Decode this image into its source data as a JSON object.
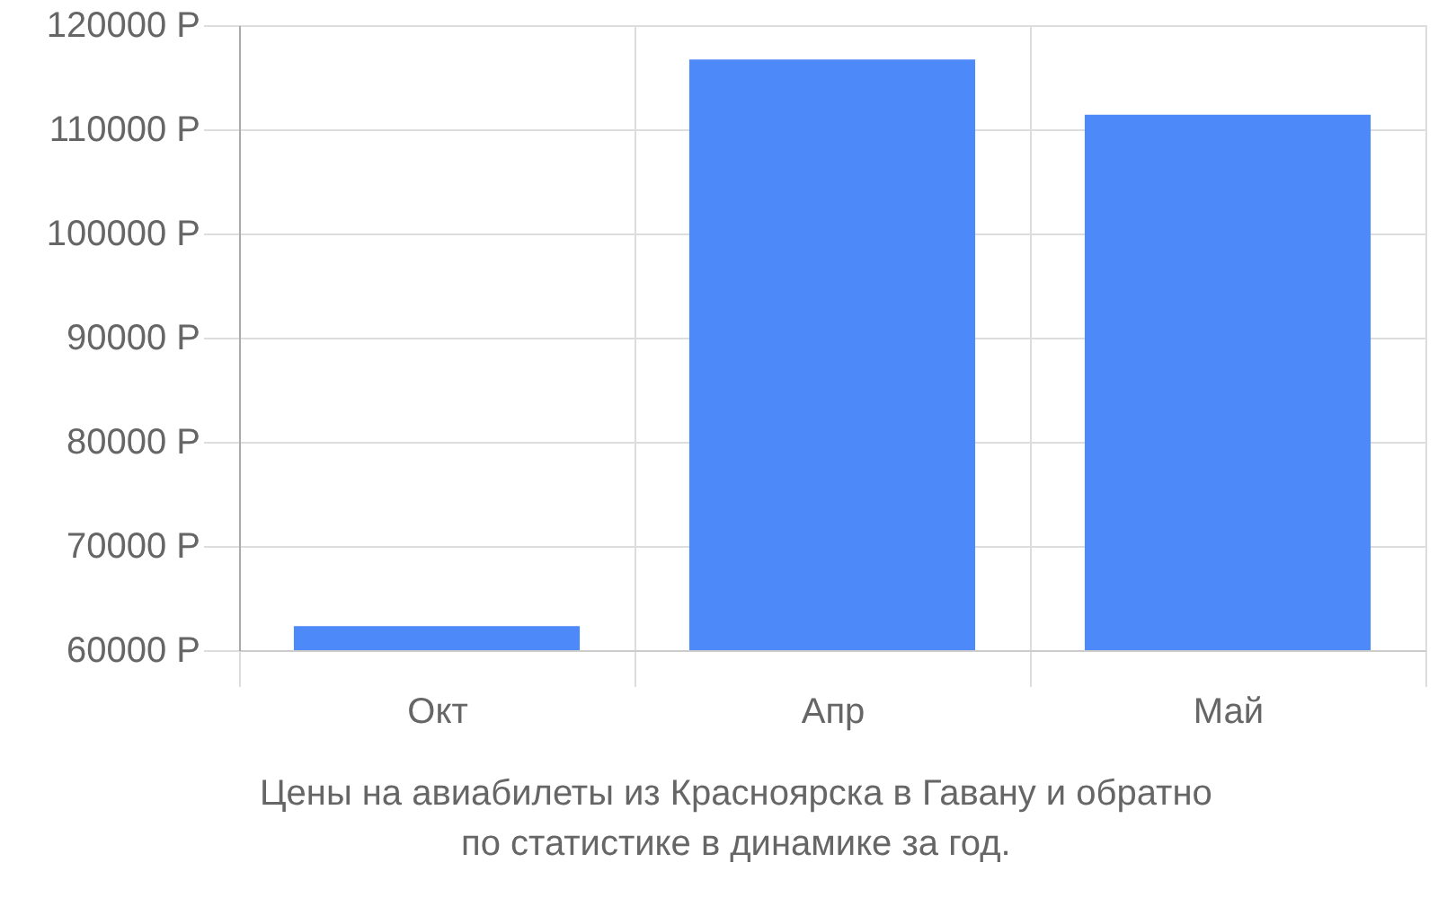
{
  "chart_data": {
    "type": "bar",
    "categories": [
      "Окт",
      "Апр",
      "Май"
    ],
    "values": [
      62300,
      116700,
      111400
    ],
    "color": "#4d89f9",
    "ylim": [
      60000,
      120000
    ],
    "yticks": [
      {
        "value": 60000,
        "label": "60000 Р"
      },
      {
        "value": 70000,
        "label": "70000 Р"
      },
      {
        "value": 80000,
        "label": "80000 Р"
      },
      {
        "value": 90000,
        "label": "90000 Р"
      },
      {
        "value": 100000,
        "label": "100000 Р"
      },
      {
        "value": 110000,
        "label": "110000 Р"
      },
      {
        "value": 120000,
        "label": "120000 Р"
      }
    ],
    "grid": true,
    "annotations": [
      "Цены на авиабилеты из Красноярска в Гавану и обратно",
      "по статистике в динамике за год."
    ]
  }
}
